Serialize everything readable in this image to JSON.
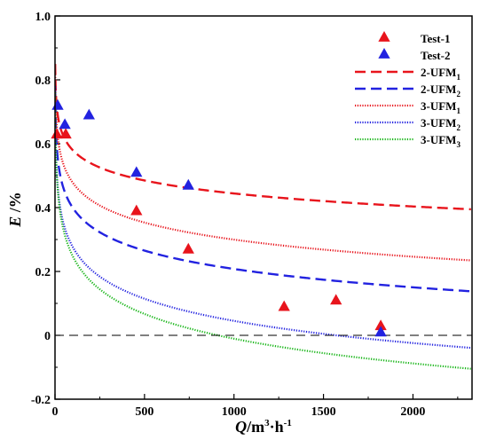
{
  "chart_data": {
    "type": "scatter",
    "xlabel": {
      "italic": "Q",
      "unit": "/m",
      "sup1": "3",
      "mid": "·h",
      "sup2": "-1"
    },
    "ylabel": {
      "italic": "E",
      "unit": " /%"
    },
    "xlim": [
      0,
      2330
    ],
    "ylim": [
      -0.2,
      1.0
    ],
    "xticks": [
      0,
      500,
      1000,
      1500,
      2000
    ],
    "yticks": [
      -0.2,
      0,
      0.2,
      0.4,
      0.6,
      0.8,
      1.0
    ],
    "xtick_labels": [
      "0",
      "500",
      "1000",
      "1500",
      "2000"
    ],
    "ytick_labels": [
      "-0.2",
      "0",
      "0.2",
      "0.4",
      "0.6",
      "0.8",
      "1.0"
    ],
    "reference_line_y": 0,
    "legend_position": "top-right",
    "series": [
      {
        "name": "Test-1",
        "kind": "markers",
        "color": "#e8141c",
        "x": [
          10,
          60,
          455,
          745,
          1280,
          1570,
          1820
        ],
        "y": [
          0.63,
          0.63,
          0.39,
          0.27,
          0.09,
          0.11,
          0.03
        ]
      },
      {
        "name": "Test-2",
        "kind": "markers",
        "color": "#2222e0",
        "x": [
          15,
          55,
          190,
          455,
          745,
          1820
        ],
        "y": [
          0.72,
          0.66,
          0.69,
          0.51,
          0.47,
          0.01
        ]
      },
      {
        "name": "2-UFM",
        "sub": "1",
        "kind": "curve",
        "color": "#e8141c",
        "dash": "dashed",
        "a": 0.0587,
        "b": 0.8497
      },
      {
        "name": "2-UFM",
        "sub": "2",
        "kind": "curve",
        "color": "#2222e0",
        "dash": "dashed",
        "a": 0.0829,
        "b": 0.7805
      },
      {
        "name": "3-UFM",
        "sub": "1",
        "kind": "curve",
        "color": "#e8141c",
        "dash": "dotted",
        "a": 0.0771,
        "b": 0.8323
      },
      {
        "name": "3-UFM",
        "sub": "2",
        "kind": "curve",
        "color": "#2222e0",
        "dash": "dotted",
        "a": 0.1001,
        "b": 0.7367
      },
      {
        "name": "3-UFM",
        "sub": "3",
        "kind": "curve",
        "color": "#18b518",
        "dash": "dotted",
        "a": 0.1117,
        "b": 0.7611
      }
    ]
  }
}
